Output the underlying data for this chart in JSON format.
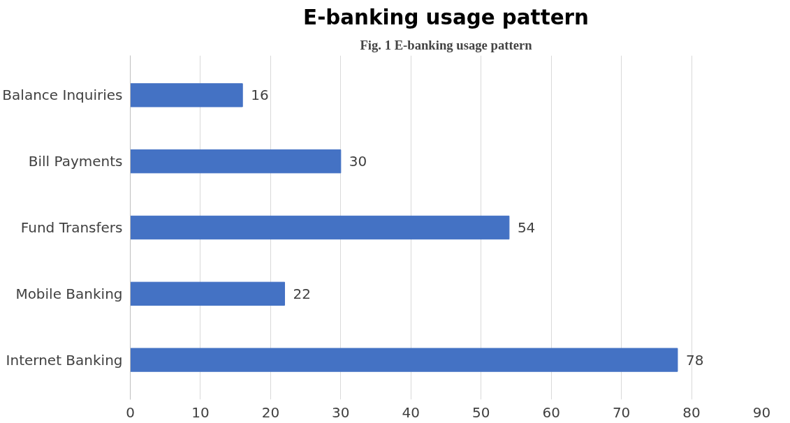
{
  "chart_data": {
    "type": "bar",
    "orientation": "horizontal",
    "title": "E-banking usage pattern",
    "annotations": [
      "Fig. 1 E-banking usage pattern"
    ],
    "categories": [
      "Balance Inquiries",
      "Bill Payments",
      "Fund Transfers",
      "Mobile Banking",
      "Internet Banking"
    ],
    "values": [
      16,
      30,
      54,
      22,
      78
    ],
    "color": "#4472c4",
    "xlim": [
      0,
      90
    ],
    "xticks": [
      0,
      10,
      20,
      30,
      40,
      50,
      60,
      70,
      80,
      90
    ],
    "grid": "x",
    "data_labels": true
  }
}
